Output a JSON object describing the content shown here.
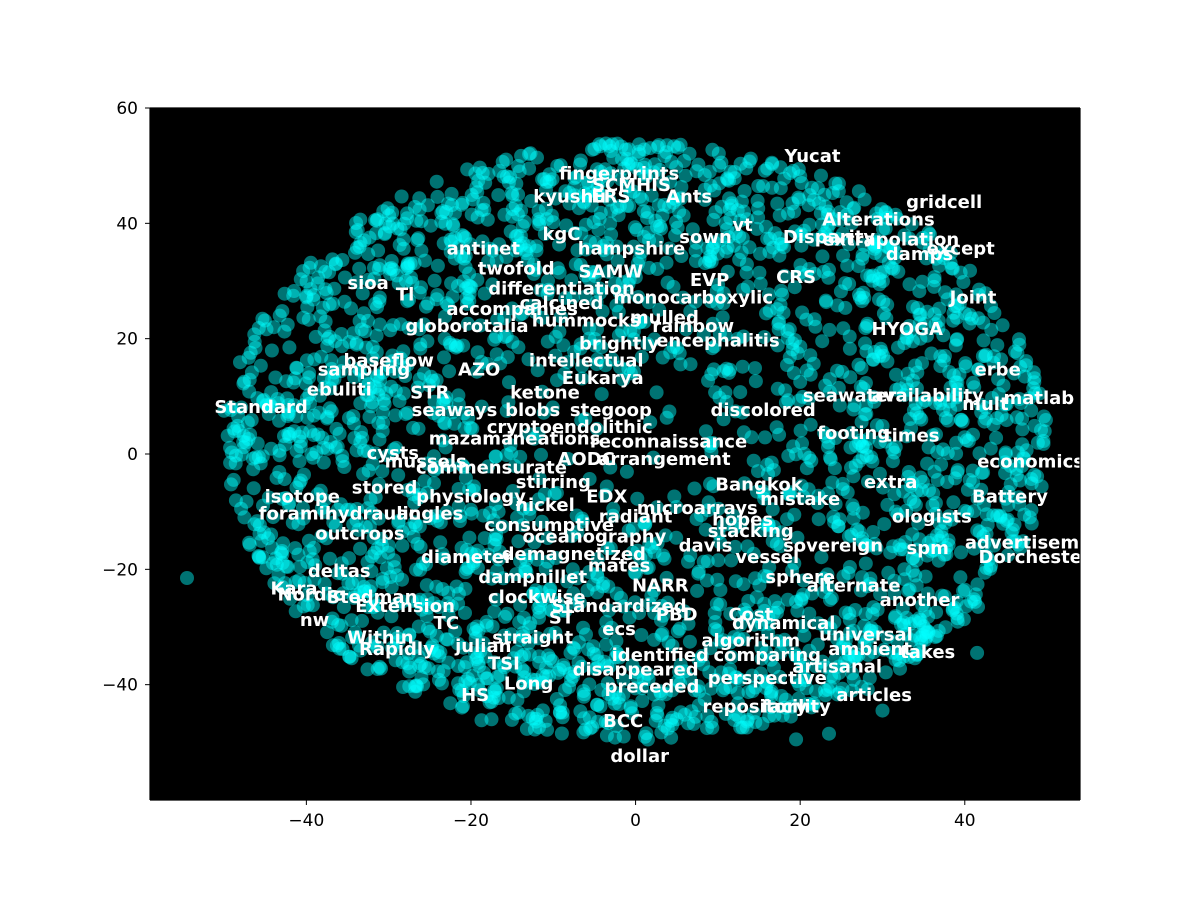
{
  "chart_data": {
    "type": "scatter",
    "title": "",
    "xlabel": "",
    "ylabel": "",
    "xlim": [
      -59,
      54
    ],
    "ylim": [
      -60,
      60
    ],
    "xticks": [
      -40,
      -20,
      0,
      20,
      40
    ],
    "yticks": [
      -40,
      -20,
      0,
      20,
      40,
      60
    ],
    "grid": false,
    "legend": "none",
    "colors": {
      "background": "#000000",
      "marker": "#00ffff",
      "label": "#ffffff"
    },
    "cluster": {
      "center": [
        0,
        2
      ],
      "rx": 50,
      "ry": 52,
      "count": 2600,
      "seed": 7
    },
    "outliers": [
      [
        -54.5,
        -21.5
      ],
      [
        41.5,
        -34.5
      ],
      [
        23.5,
        -48.5
      ],
      [
        30,
        -44.5
      ],
      [
        19.5,
        -49.5
      ],
      [
        -34,
        38.5
      ],
      [
        -50,
        7.5
      ]
    ],
    "labels": [
      {
        "text": "Yucat",
        "x": 21.5,
        "y": 51.5
      },
      {
        "text": "fingerprints",
        "x": -2,
        "y": 48.5
      },
      {
        "text": "SCMHIS",
        "x": -0.5,
        "y": 46.5
      },
      {
        "text": "kyushu",
        "x": -8,
        "y": 44.5
      },
      {
        "text": "ERS",
        "x": -3,
        "y": 44.5
      },
      {
        "text": "Ants",
        "x": 6.5,
        "y": 44.5
      },
      {
        "text": "gridcell",
        "x": 37.5,
        "y": 43.5
      },
      {
        "text": "vt",
        "x": 13,
        "y": 39.5
      },
      {
        "text": "Alterations",
        "x": 29.5,
        "y": 40.5
      },
      {
        "text": "kgC",
        "x": -9,
        "y": 38
      },
      {
        "text": "sown",
        "x": 8.5,
        "y": 37.5
      },
      {
        "text": "Disparity",
        "x": 23.5,
        "y": 37.5
      },
      {
        "text": "extrapolation",
        "x": 31,
        "y": 37
      },
      {
        "text": "antinet",
        "x": -18.5,
        "y": 35.5
      },
      {
        "text": "hampshire",
        "x": -0.5,
        "y": 35.5
      },
      {
        "text": "except",
        "x": 39.5,
        "y": 35.5
      },
      {
        "text": "damps",
        "x": 34.5,
        "y": 34.5
      },
      {
        "text": "twofold",
        "x": -14.5,
        "y": 32
      },
      {
        "text": "SAMW",
        "x": -3,
        "y": 31.5
      },
      {
        "text": "EVP",
        "x": 9,
        "y": 30
      },
      {
        "text": "CRS",
        "x": 19.5,
        "y": 30.5
      },
      {
        "text": "sioa",
        "x": -32.5,
        "y": 29.5
      },
      {
        "text": "Tl",
        "x": -28,
        "y": 27.5
      },
      {
        "text": "differentiation",
        "x": -9,
        "y": 28.5
      },
      {
        "text": "monocarboxylic",
        "x": 7,
        "y": 27
      },
      {
        "text": "Joint",
        "x": 41,
        "y": 27
      },
      {
        "text": "accompanies",
        "x": -15,
        "y": 25
      },
      {
        "text": "calcined",
        "x": -9,
        "y": 26
      },
      {
        "text": "hummocks",
        "x": -6,
        "y": 23
      },
      {
        "text": "mulled",
        "x": 3.5,
        "y": 23.5
      },
      {
        "text": "globorotalia",
        "x": -20.5,
        "y": 22
      },
      {
        "text": "rainbow",
        "x": 7,
        "y": 22
      },
      {
        "text": "HYOGA",
        "x": 33,
        "y": 21.5
      },
      {
        "text": "brightly",
        "x": -2,
        "y": 19
      },
      {
        "text": "encephalitis",
        "x": 10,
        "y": 19.5
      },
      {
        "text": "baseflow",
        "x": -30,
        "y": 16
      },
      {
        "text": "AZO",
        "x": -19,
        "y": 14.5
      },
      {
        "text": "intellectual",
        "x": -6,
        "y": 16
      },
      {
        "text": "Eukarya",
        "x": -4,
        "y": 13
      },
      {
        "text": "erbe",
        "x": 44,
        "y": 14.5
      },
      {
        "text": "sampling",
        "x": -33,
        "y": 14.5
      },
      {
        "text": "ebuliti",
        "x": -36,
        "y": 11
      },
      {
        "text": "STR",
        "x": -25,
        "y": 10.5
      },
      {
        "text": "Standard",
        "x": -45.5,
        "y": 8
      },
      {
        "text": "ketone",
        "x": -11,
        "y": 10.5
      },
      {
        "text": "seawater",
        "x": 26,
        "y": 10
      },
      {
        "text": "availability",
        "x": 35.5,
        "y": 10
      },
      {
        "text": "matlab",
        "x": 49,
        "y": 9.5
      },
      {
        "text": "seaways",
        "x": -22,
        "y": 7.5
      },
      {
        "text": "blobs",
        "x": -12.5,
        "y": 7.5
      },
      {
        "text": "stegoop",
        "x": -3,
        "y": 7.5
      },
      {
        "text": "discolored",
        "x": 15.5,
        "y": 7.5
      },
      {
        "text": "mult",
        "x": 42.5,
        "y": 8.5
      },
      {
        "text": "cryptoendolithic",
        "x": -8,
        "y": 4.5
      },
      {
        "text": "mazama",
        "x": -20,
        "y": 2.5
      },
      {
        "text": "ineations",
        "x": -10,
        "y": 2.5
      },
      {
        "text": "reconnaissance",
        "x": 4,
        "y": 2
      },
      {
        "text": "footing",
        "x": 26.5,
        "y": 3.5
      },
      {
        "text": "times",
        "x": 33.5,
        "y": 3
      },
      {
        "text": "cysts",
        "x": -29.5,
        "y": 0
      },
      {
        "text": "mussels",
        "x": -25.5,
        "y": -1.5
      },
      {
        "text": "AODC",
        "x": -6,
        "y": -1
      },
      {
        "text": "arrangement",
        "x": 3.5,
        "y": -1
      },
      {
        "text": "economics",
        "x": 48,
        "y": -1.5
      },
      {
        "text": "commensurate",
        "x": -17.5,
        "y": -2.5
      },
      {
        "text": "stirring",
        "x": -10,
        "y": -5
      },
      {
        "text": "Bangkok",
        "x": 15,
        "y": -5.5
      },
      {
        "text": "extra",
        "x": 31,
        "y": -5
      },
      {
        "text": "isotope",
        "x": -40.5,
        "y": -7.5
      },
      {
        "text": "stored",
        "x": -30.5,
        "y": -6
      },
      {
        "text": "physiology",
        "x": -20,
        "y": -7.5
      },
      {
        "text": "EDX",
        "x": -3.5,
        "y": -7.5
      },
      {
        "text": "mistake",
        "x": 20,
        "y": -8
      },
      {
        "text": "Battery",
        "x": 45.5,
        "y": -7.5
      },
      {
        "text": "foramin",
        "x": -41,
        "y": -10.5
      },
      {
        "text": "hydraulic",
        "x": -32,
        "y": -10.5
      },
      {
        "text": "angles",
        "x": -25,
        "y": -10.5
      },
      {
        "text": "nickel",
        "x": -11,
        "y": -9
      },
      {
        "text": "microarrays",
        "x": 7.5,
        "y": -9.5
      },
      {
        "text": "radiant",
        "x": 0,
        "y": -11
      },
      {
        "text": "hopes",
        "x": 13,
        "y": -11.5
      },
      {
        "text": "ologists",
        "x": 36,
        "y": -11
      },
      {
        "text": "consumptive",
        "x": -10.5,
        "y": -12.5
      },
      {
        "text": "outcrops",
        "x": -33.5,
        "y": -14
      },
      {
        "text": "oceanography",
        "x": -5,
        "y": -14.5
      },
      {
        "text": "stacking",
        "x": 14,
        "y": -13.5
      },
      {
        "text": "davis",
        "x": 8.5,
        "y": -16
      },
      {
        "text": "sovereign",
        "x": 24,
        "y": -16
      },
      {
        "text": "spm",
        "x": 35.5,
        "y": -16.5
      },
      {
        "text": "advertisement",
        "x": 49,
        "y": -15.5
      },
      {
        "text": "diameter",
        "x": -20.5,
        "y": -18
      },
      {
        "text": "demagnetized",
        "x": -7.5,
        "y": -17.5
      },
      {
        "text": "vessel",
        "x": 16,
        "y": -18
      },
      {
        "text": "Dorchester",
        "x": 48.5,
        "y": -18
      },
      {
        "text": "deltas",
        "x": -36,
        "y": -20.5
      },
      {
        "text": "dampnillet",
        "x": -12.5,
        "y": -21.5
      },
      {
        "text": "mates",
        "x": -2,
        "y": -19.5
      },
      {
        "text": "sphere",
        "x": 20,
        "y": -21.5
      },
      {
        "text": "NARR",
        "x": 3,
        "y": -23
      },
      {
        "text": "alternate",
        "x": 26.5,
        "y": -23
      },
      {
        "text": "Kara",
        "x": -41.5,
        "y": -23.5
      },
      {
        "text": "Nordic",
        "x": -39.5,
        "y": -24.5
      },
      {
        "text": "Stedman",
        "x": -32,
        "y": -25
      },
      {
        "text": "clockwise",
        "x": -12,
        "y": -25
      },
      {
        "text": "another",
        "x": 34.5,
        "y": -25.5
      },
      {
        "text": "Extension",
        "x": -28,
        "y": -26.5
      },
      {
        "text": "Standardized",
        "x": -2,
        "y": -26.5
      },
      {
        "text": "PBD",
        "x": 5,
        "y": -28
      },
      {
        "text": "Cost",
        "x": 14,
        "y": -28
      },
      {
        "text": "ST",
        "x": -9,
        "y": -28.5
      },
      {
        "text": "nw",
        "x": -39,
        "y": -29
      },
      {
        "text": "TC",
        "x": -23,
        "y": -29.5
      },
      {
        "text": "dynamical",
        "x": 18,
        "y": -29.5
      },
      {
        "text": "ecs",
        "x": -2,
        "y": -30.5
      },
      {
        "text": "straight",
        "x": -12.5,
        "y": -32
      },
      {
        "text": "Within",
        "x": -31,
        "y": -32
      },
      {
        "text": "universal",
        "x": 28,
        "y": -31.5
      },
      {
        "text": "algorithm",
        "x": 14,
        "y": -32.5
      },
      {
        "text": "julian",
        "x": -18.5,
        "y": -33.5
      },
      {
        "text": "Rapidly",
        "x": -29,
        "y": -34
      },
      {
        "text": "ambient",
        "x": 28.5,
        "y": -34
      },
      {
        "text": "takes",
        "x": 35.5,
        "y": -34.5
      },
      {
        "text": "identified",
        "x": 3,
        "y": -35
      },
      {
        "text": "comparing",
        "x": 16,
        "y": -35
      },
      {
        "text": "TSI",
        "x": -16,
        "y": -36.5
      },
      {
        "text": "artisanal",
        "x": 24.5,
        "y": -37
      },
      {
        "text": "disappeared",
        "x": 0,
        "y": -37.5
      },
      {
        "text": "perspective",
        "x": 16,
        "y": -39
      },
      {
        "text": "Long",
        "x": -13,
        "y": -40
      },
      {
        "text": "preceded",
        "x": 2,
        "y": -40.5
      },
      {
        "text": "HS",
        "x": -19.5,
        "y": -42
      },
      {
        "text": "articles",
        "x": 29,
        "y": -42
      },
      {
        "text": "repository",
        "x": 14.5,
        "y": -44
      },
      {
        "text": "facility",
        "x": 19.5,
        "y": -44
      },
      {
        "text": "BCC",
        "x": -1.5,
        "y": -46.5
      },
      {
        "text": "dollar",
        "x": 0.5,
        "y": -52.5
      }
    ]
  }
}
